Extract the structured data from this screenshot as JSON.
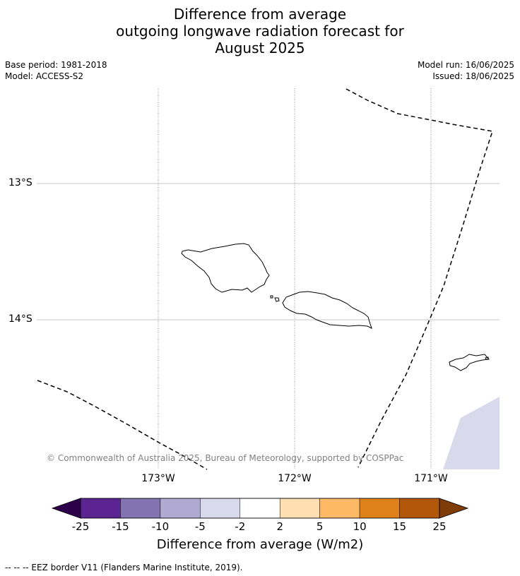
{
  "title": {
    "line1": "Difference from average",
    "line2": "outgoing longwave radiation forecast for",
    "line3": "August 2025"
  },
  "meta": {
    "base_period": "Base period: 1981-2018",
    "model": "Model: ACCESS-S2",
    "model_run": "Model run: 16/06/2025",
    "issued": "Issued: 18/06/2025"
  },
  "map": {
    "lat_labels": [
      "13°S",
      "14°S"
    ],
    "lon_labels": [
      "173°W",
      "172°W",
      "171°W"
    ],
    "eez_line_style": "dashed",
    "land_outline_color": "#000000",
    "anomaly_fill_color": "#d8d9eb",
    "gridline_color": "#b0b0b0"
  },
  "copyright": "© Commonwealth of Australia 2025, Bureau of Meteorology, supported by COSPPac",
  "colorbar": {
    "ticks": [
      "-25",
      "-15",
      "-10",
      "-5",
      "-2",
      "2",
      "5",
      "10",
      "15",
      "25"
    ],
    "colors": [
      "#5c2491",
      "#8473b1",
      "#b0a9d2",
      "#d8d9eb",
      "#ffffff",
      "#fedeb3",
      "#fcb864",
      "#e0821c",
      "#b3580a"
    ],
    "under_color": "#2d004b",
    "over_color": "#7f3b08",
    "label": "Difference from average (W/m2)"
  },
  "footnote": "--  --  -- EEZ border V11 (Flanders Marine Institute, 2019)."
}
